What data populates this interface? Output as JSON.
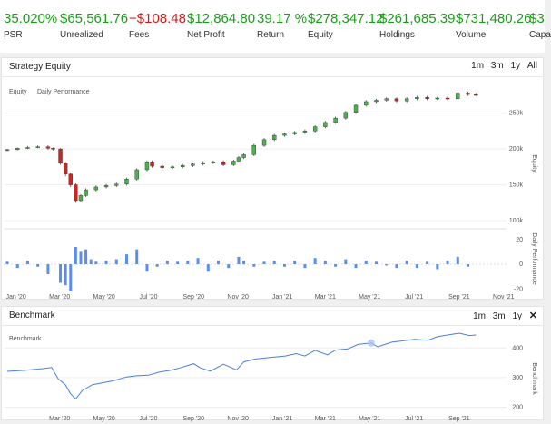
{
  "stats": [
    {
      "value": "35.020%",
      "label": "PSR",
      "tone": "pos"
    },
    {
      "value": "$65,561.76",
      "label": "Unrealized",
      "tone": "pos"
    },
    {
      "value": "−$108.48",
      "label": "Fees",
      "tone": "neg"
    },
    {
      "value": "$12,864.80",
      "label": "Net Profit",
      "tone": "pos"
    },
    {
      "value": "39.17 %",
      "label": "Return",
      "tone": "pos"
    },
    {
      "value": "$278,347.12",
      "label": "Equity",
      "tone": "pos"
    },
    {
      "value": "$261,685.39",
      "label": "Holdings",
      "tone": "pos"
    },
    {
      "value": "$731,480.26",
      "label": "Volume",
      "tone": "pos"
    },
    {
      "value": "$3",
      "label": "Capa",
      "tone": "pos"
    }
  ],
  "range_buttons": [
    "1m",
    "3m",
    "1y",
    "All"
  ],
  "strategy_panel": {
    "title": "Strategy Equity",
    "legend": [
      "Equity",
      "Daily Performance"
    ],
    "equity_axis_label": "Equity",
    "daily_axis_label": "Daily Performance",
    "equity_ticks": [
      "100k",
      "150k",
      "200k",
      "250k"
    ],
    "daily_ticks": [
      "-20",
      "0",
      "20"
    ],
    "x_ticks": [
      "Jan '20",
      "Mar '20",
      "May '20",
      "Jul '20",
      "Sep '20",
      "Nov '20",
      "Jan '21",
      "Mar '21",
      "May '21",
      "Jul '21",
      "Sep '21",
      "Nov '21"
    ]
  },
  "benchmark_panel": {
    "title": "Benchmark",
    "legend": [
      "Benchmark"
    ],
    "axis_label": "Benchmark",
    "y_ticks": [
      "200",
      "300",
      "400"
    ],
    "x_ticks": [
      "Mar '20",
      "May '20",
      "Jul '20",
      "Sep '20",
      "Nov '20",
      "Jan '21",
      "Mar '21",
      "May '21",
      "Jul '21",
      "Sep '21"
    ]
  },
  "chart_data": [
    {
      "type": "candlestick",
      "name": "Equity",
      "x_range": [
        "2019-12-15",
        "2021-11-05"
      ],
      "ylim": [
        95000,
        290000
      ],
      "candles": [
        [
          "2019-12-20",
          198000,
          199000,
          197000,
          200000
        ],
        [
          "2020-01-03",
          199000,
          201000,
          198000,
          202000
        ],
        [
          "2020-01-17",
          201000,
          202000,
          200000,
          204000
        ],
        [
          "2020-01-31",
          202000,
          203000,
          201000,
          205000
        ],
        [
          "2020-02-14",
          203000,
          201000,
          199000,
          205000
        ],
        [
          "2020-02-21",
          201000,
          200000,
          198000,
          202000
        ],
        [
          "2020-03-02",
          200000,
          180000,
          178000,
          201000
        ],
        [
          "2020-03-09",
          180000,
          165000,
          162000,
          182000
        ],
        [
          "2020-03-16",
          165000,
          150000,
          147000,
          167000
        ],
        [
          "2020-03-23",
          150000,
          128000,
          125000,
          152000
        ],
        [
          "2020-03-30",
          128000,
          135000,
          126000,
          137000
        ],
        [
          "2020-04-06",
          135000,
          143000,
          133000,
          145000
        ],
        [
          "2020-04-20",
          143000,
          147000,
          141000,
          149000
        ],
        [
          "2020-05-04",
          147000,
          149000,
          145000,
          151000
        ],
        [
          "2020-05-18",
          149000,
          151000,
          147000,
          153000
        ],
        [
          "2020-06-01",
          151000,
          158000,
          149000,
          160000
        ],
        [
          "2020-06-15",
          158000,
          171000,
          156000,
          173000
        ],
        [
          "2020-06-29",
          171000,
          182000,
          169000,
          184000
        ],
        [
          "2020-07-06",
          182000,
          176000,
          174000,
          184000
        ],
        [
          "2020-07-20",
          176000,
          174000,
          172000,
          178000
        ],
        [
          "2020-08-03",
          174000,
          175000,
          172000,
          177000
        ],
        [
          "2020-08-17",
          175000,
          177000,
          173000,
          179000
        ],
        [
          "2020-08-31",
          177000,
          179000,
          175000,
          181000
        ],
        [
          "2020-09-14",
          179000,
          181000,
          177000,
          183000
        ],
        [
          "2020-09-28",
          181000,
          182000,
          179000,
          184000
        ],
        [
          "2020-10-12",
          182000,
          178000,
          176000,
          184000
        ],
        [
          "2020-10-26",
          178000,
          183000,
          176000,
          185000
        ],
        [
          "2020-11-02",
          183000,
          188000,
          182000,
          190000
        ],
        [
          "2020-11-09",
          188000,
          192000,
          186000,
          194000
        ],
        [
          "2020-11-23",
          192000,
          205000,
          190000,
          207000
        ],
        [
          "2020-12-07",
          205000,
          213000,
          203000,
          215000
        ],
        [
          "2020-12-21",
          213000,
          219000,
          211000,
          221000
        ],
        [
          "2021-01-04",
          219000,
          221000,
          217000,
          223000
        ],
        [
          "2021-01-18",
          221000,
          223000,
          219000,
          225000
        ],
        [
          "2021-02-01",
          223000,
          225000,
          221000,
          227000
        ],
        [
          "2021-02-15",
          225000,
          231000,
          223000,
          233000
        ],
        [
          "2021-03-01",
          231000,
          237000,
          229000,
          239000
        ],
        [
          "2021-03-15",
          237000,
          243000,
          235000,
          245000
        ],
        [
          "2021-03-29",
          243000,
          251000,
          241000,
          253000
        ],
        [
          "2021-04-12",
          251000,
          261000,
          249000,
          263000
        ],
        [
          "2021-04-26",
          261000,
          266000,
          259000,
          268000
        ],
        [
          "2021-05-10",
          266000,
          268000,
          264000,
          270000
        ],
        [
          "2021-05-24",
          268000,
          270000,
          266000,
          272000
        ],
        [
          "2021-06-07",
          270000,
          267000,
          265000,
          272000
        ],
        [
          "2021-06-21",
          267000,
          270000,
          265000,
          272000
        ],
        [
          "2021-07-05",
          270000,
          272000,
          268000,
          274000
        ],
        [
          "2021-07-19",
          272000,
          270000,
          268000,
          274000
        ],
        [
          "2021-08-02",
          270000,
          271000,
          268000,
          273000
        ],
        [
          "2021-08-16",
          271000,
          270000,
          268000,
          273000
        ],
        [
          "2021-08-30",
          270000,
          278000,
          268000,
          280000
        ],
        [
          "2021-09-13",
          278000,
          276000,
          274000,
          280000
        ],
        [
          "2021-09-24",
          276000,
          275000,
          274000,
          278000
        ]
      ]
    },
    {
      "type": "bar",
      "name": "Daily Performance",
      "ylim": [
        -22,
        25
      ],
      "x": [
        "2019-12-20",
        "2020-01-03",
        "2020-01-17",
        "2020-01-31",
        "2020-02-14",
        "2020-03-02",
        "2020-03-09",
        "2020-03-16",
        "2020-03-23",
        "2020-03-30",
        "2020-04-06",
        "2020-04-13",
        "2020-04-20",
        "2020-05-04",
        "2020-05-18",
        "2020-06-01",
        "2020-06-15",
        "2020-06-29",
        "2020-07-13",
        "2020-07-27",
        "2020-08-10",
        "2020-08-24",
        "2020-09-07",
        "2020-09-21",
        "2020-10-05",
        "2020-10-19",
        "2020-11-02",
        "2020-11-09",
        "2020-11-23",
        "2020-12-07",
        "2020-12-21",
        "2021-01-04",
        "2021-01-18",
        "2021-02-01",
        "2021-02-15",
        "2021-03-01",
        "2021-03-15",
        "2021-03-29",
        "2021-04-12",
        "2021-04-26",
        "2021-05-10",
        "2021-05-24",
        "2021-06-07",
        "2021-06-21",
        "2021-07-05",
        "2021-07-19",
        "2021-08-02",
        "2021-08-16",
        "2021-08-30",
        "2021-09-13"
      ],
      "values": [
        2,
        -3,
        3,
        -2,
        -8,
        -15,
        -17,
        -22,
        14,
        10,
        12,
        4,
        2,
        3,
        4,
        8,
        12,
        -6,
        -2,
        3,
        2,
        3,
        5,
        -6,
        3,
        -3,
        6,
        3,
        -2,
        2,
        3,
        -2,
        3,
        -3,
        5,
        3,
        -2,
        4,
        -3,
        3,
        2,
        -1,
        -3,
        3,
        -3,
        2,
        -4,
        3,
        6,
        -2
      ]
    },
    {
      "type": "line",
      "name": "Benchmark",
      "x_range": [
        "2019-12-15",
        "2021-11-05"
      ],
      "ylim": [
        180,
        450
      ],
      "points": [
        [
          "2019-12-20",
          321
        ],
        [
          "2020-01-15",
          325
        ],
        [
          "2020-02-05",
          330
        ],
        [
          "2020-02-19",
          334
        ],
        [
          "2020-02-28",
          296
        ],
        [
          "2020-03-09",
          275
        ],
        [
          "2020-03-16",
          245
        ],
        [
          "2020-03-23",
          228
        ],
        [
          "2020-04-01",
          256
        ],
        [
          "2020-04-15",
          276
        ],
        [
          "2020-05-01",
          283
        ],
        [
          "2020-05-15",
          290
        ],
        [
          "2020-06-01",
          302
        ],
        [
          "2020-06-15",
          306
        ],
        [
          "2020-07-01",
          308
        ],
        [
          "2020-07-15",
          318
        ],
        [
          "2020-08-01",
          325
        ],
        [
          "2020-08-15",
          334
        ],
        [
          "2020-09-01",
          347
        ],
        [
          "2020-09-10",
          333
        ],
        [
          "2020-09-24",
          322
        ],
        [
          "2020-10-12",
          345
        ],
        [
          "2020-10-30",
          326
        ],
        [
          "2020-11-09",
          353
        ],
        [
          "2020-11-25",
          363
        ],
        [
          "2020-12-15",
          368
        ],
        [
          "2021-01-05",
          373
        ],
        [
          "2021-01-20",
          381
        ],
        [
          "2021-02-01",
          373
        ],
        [
          "2021-02-15",
          392
        ],
        [
          "2021-03-04",
          377
        ],
        [
          "2021-03-15",
          393
        ],
        [
          "2021-04-01",
          397
        ],
        [
          "2021-04-15",
          412
        ],
        [
          "2021-05-03",
          417
        ],
        [
          "2021-05-12",
          404
        ],
        [
          "2021-06-01",
          420
        ],
        [
          "2021-06-15",
          424
        ],
        [
          "2021-07-01",
          429
        ],
        [
          "2021-07-20",
          426
        ],
        [
          "2021-08-02",
          438
        ],
        [
          "2021-08-16",
          444
        ],
        [
          "2021-09-01",
          450
        ],
        [
          "2021-09-15",
          442
        ],
        [
          "2021-09-24",
          444
        ]
      ],
      "highlight": "2021-05-03"
    }
  ]
}
